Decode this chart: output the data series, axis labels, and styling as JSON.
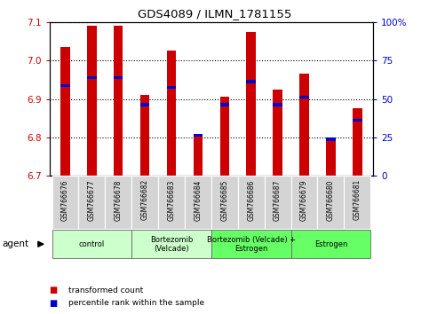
{
  "title": "GDS4089 / ILMN_1781155",
  "samples": [
    "GSM766676",
    "GSM766677",
    "GSM766678",
    "GSM766682",
    "GSM766683",
    "GSM766684",
    "GSM766685",
    "GSM766686",
    "GSM766687",
    "GSM766679",
    "GSM766680",
    "GSM766681"
  ],
  "transformed_count": [
    7.035,
    7.09,
    7.09,
    6.91,
    7.025,
    6.805,
    6.905,
    7.075,
    6.925,
    6.965,
    6.795,
    6.875
  ],
  "percentile_rank": [
    6.935,
    6.955,
    6.955,
    6.885,
    6.93,
    6.805,
    6.885,
    6.945,
    6.885,
    6.905,
    6.795,
    6.845
  ],
  "ymin": 6.7,
  "ymax": 7.1,
  "yticks": [
    6.7,
    6.8,
    6.9,
    7.0,
    7.1
  ],
  "y2ticks": [
    0,
    25,
    50,
    75,
    100
  ],
  "y2labels": [
    "0",
    "25",
    "50",
    "75",
    "100%"
  ],
  "groups": [
    {
      "label": "control",
      "start": 0,
      "end": 3,
      "color": "#ccffcc"
    },
    {
      "label": "Bortezomib\n(Velcade)",
      "start": 3,
      "end": 6,
      "color": "#ccffcc"
    },
    {
      "label": "Bortezomib (Velcade) +\nEstrogen",
      "start": 6,
      "end": 9,
      "color": "#66ff66"
    },
    {
      "label": "Estrogen",
      "start": 9,
      "end": 12,
      "color": "#66ff66"
    }
  ],
  "bar_color": "#cc0000",
  "percentile_color": "#0000cc",
  "bar_width": 0.35,
  "tick_color_left": "#cc0000",
  "tick_color_right": "#0000cc",
  "legend_items": [
    {
      "label": "transformed count",
      "color": "#cc0000"
    },
    {
      "label": "percentile rank within the sample",
      "color": "#0000cc"
    }
  ],
  "agent_label": "agent"
}
